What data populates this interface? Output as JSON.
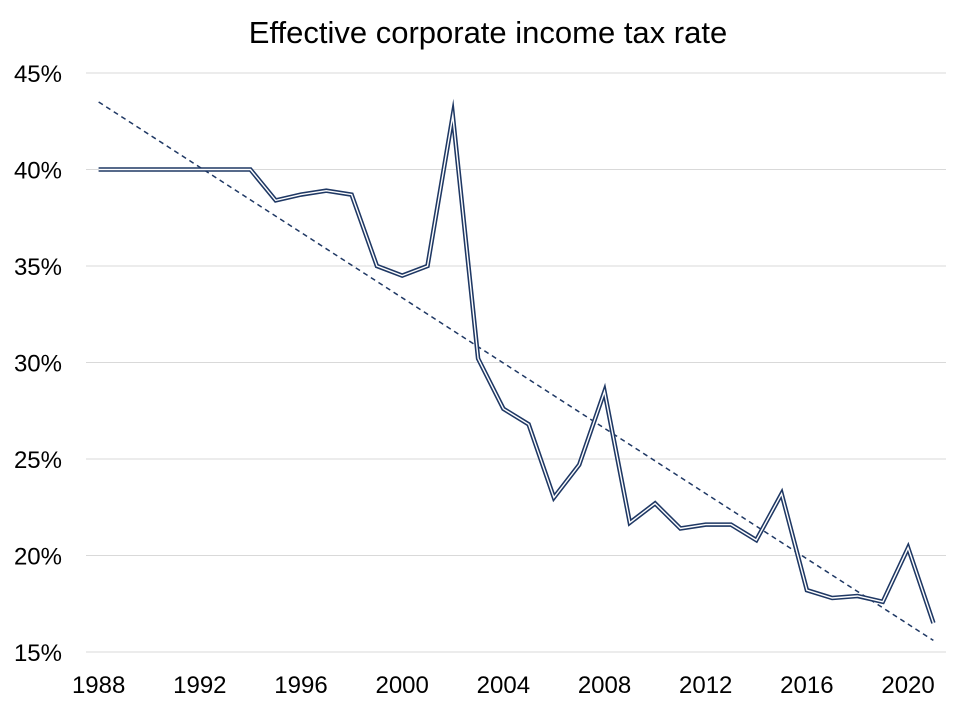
{
  "chart_data": {
    "type": "line",
    "title": "Effective corporate income tax rate",
    "xlabel": "",
    "ylabel": "",
    "x": [
      1988,
      1989,
      1990,
      1991,
      1992,
      1993,
      1994,
      1995,
      1996,
      1997,
      1998,
      1999,
      2000,
      2001,
      2002,
      2003,
      2004,
      2005,
      2006,
      2007,
      2008,
      2009,
      2010,
      2011,
      2012,
      2013,
      2014,
      2015,
      2016,
      2017,
      2018,
      2019,
      2020,
      2021
    ],
    "series": [
      {
        "name": "Effective corporate income tax rate",
        "values": [
          40.0,
          40.0,
          40.0,
          40.0,
          40.0,
          40.0,
          40.0,
          38.4,
          38.7,
          38.9,
          38.7,
          35.0,
          34.5,
          35.0,
          42.8,
          30.2,
          27.6,
          26.8,
          23.0,
          24.7,
          28.5,
          21.7,
          22.7,
          21.4,
          21.6,
          21.6,
          20.8,
          23.2,
          18.2,
          17.8,
          17.9,
          17.6,
          20.4,
          16.5
        ]
      }
    ],
    "trendline": {
      "name": "Linear trend",
      "start": {
        "x": 1988,
        "y": 43.5
      },
      "end": {
        "x": 2021,
        "y": 15.6
      }
    },
    "xlim": [
      1987.5,
      2021.5
    ],
    "ylim": [
      15,
      45
    ],
    "x_ticks": [
      1988,
      1992,
      1996,
      2000,
      2004,
      2008,
      2012,
      2016,
      2020
    ],
    "x_tick_labels": [
      "1988",
      "1992",
      "1996",
      "2000",
      "2004",
      "2008",
      "2012",
      "2016",
      "2020"
    ],
    "y_ticks": [
      15,
      20,
      25,
      30,
      35,
      40,
      45
    ],
    "y_tick_labels": [
      "15%",
      "20%",
      "25%",
      "30%",
      "35%",
      "40%",
      "45%"
    ],
    "grid": true,
    "legend": "none",
    "colors": {
      "line": "#1f3864",
      "line_inner": "#ffffff",
      "trend": "#1f3864",
      "grid": "#d9d9d9"
    }
  }
}
